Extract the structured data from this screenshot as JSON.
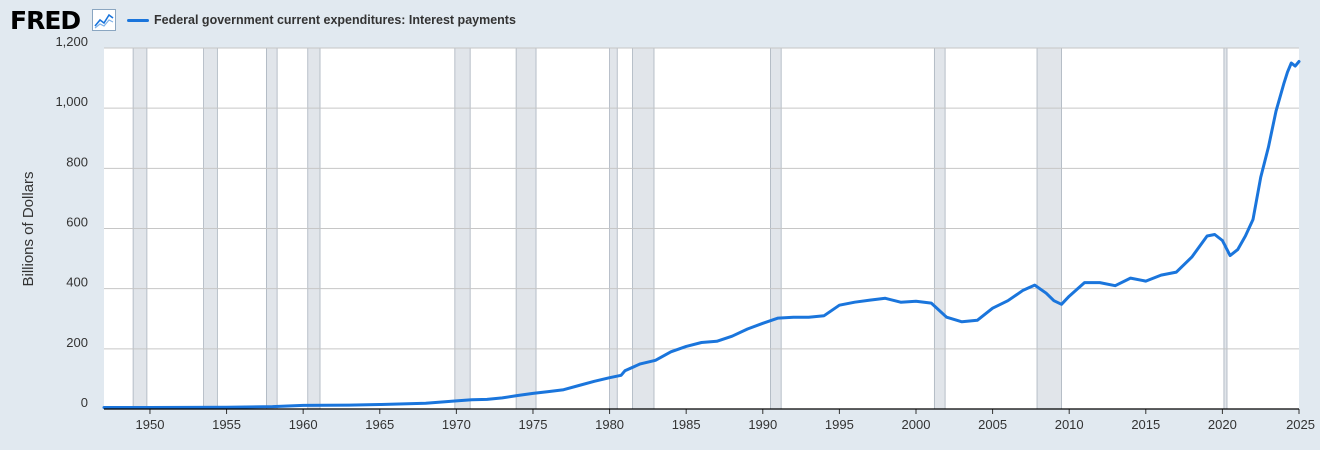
{
  "header": {
    "logo": "FRED",
    "logo_icon": "line-chart-icon"
  },
  "colors": {
    "series": "#1a75dc",
    "recession": "#e1e5ea",
    "background": "#e1e9f0",
    "plot": "#ffffff",
    "grid": "#c6c6c6"
  },
  "chart_data": {
    "type": "line",
    "title": "",
    "xlabel": "",
    "ylabel": "Billions of Dollars",
    "xlim": [
      1947,
      2025
    ],
    "ylim": [
      0,
      1200
    ],
    "x_ticks": [
      1950,
      1955,
      1960,
      1965,
      1970,
      1975,
      1980,
      1985,
      1990,
      1995,
      2000,
      2005,
      2010,
      2015,
      2020,
      2025
    ],
    "y_ticks": [
      0,
      200,
      400,
      600,
      800,
      1000,
      1200
    ],
    "y_tick_labels": [
      "0",
      "200",
      "400",
      "600",
      "800",
      "1,000",
      "1,200"
    ],
    "grid": true,
    "legend": "top-left",
    "recessions": [
      [
        1948.9,
        1949.8
      ],
      [
        1953.5,
        1954.4
      ],
      [
        1957.6,
        1958.3
      ],
      [
        1960.3,
        1961.1
      ],
      [
        1969.9,
        1970.9
      ],
      [
        1973.9,
        1975.2
      ],
      [
        1980.0,
        1980.5
      ],
      [
        1981.5,
        1982.9
      ],
      [
        1990.5,
        1991.2
      ],
      [
        2001.2,
        2001.9
      ],
      [
        2007.9,
        2009.5
      ],
      [
        2020.1,
        2020.3
      ]
    ],
    "series": [
      {
        "name": "Federal government current expenditures: Interest payments",
        "x": [
          1947,
          1950,
          1955,
          1958,
          1960,
          1963,
          1965,
          1968,
          1970,
          1971,
          1972,
          1973,
          1974,
          1975,
          1976,
          1977,
          1978,
          1979,
          1980,
          1980.75,
          1981,
          1982,
          1983,
          1984,
          1985,
          1986,
          1987,
          1988,
          1989,
          1990,
          1991,
          1992,
          1993,
          1994,
          1995,
          1996,
          1997,
          1998,
          1999,
          2000,
          2001,
          2002,
          2003,
          2004,
          2005,
          2006,
          2007,
          2007.75,
          2008.5,
          2009,
          2009.5,
          2010,
          2011,
          2012,
          2013,
          2014,
          2015,
          2016,
          2017,
          2018,
          2019,
          2019.5,
          2020,
          2020.5,
          2021,
          2021.5,
          2022,
          2022.5,
          2023,
          2023.5,
          2024,
          2024.25,
          2024.5,
          2024.75,
          2025
        ],
        "values": [
          5,
          5,
          6,
          8,
          12,
          13,
          15,
          19,
          27,
          31,
          32,
          37,
          45,
          52,
          58,
          64,
          78,
          92,
          104,
          112,
          127,
          150,
          162,
          190,
          208,
          221,
          225,
          242,
          266,
          285,
          302,
          305,
          305,
          310,
          345,
          355,
          362,
          368,
          355,
          358,
          352,
          305,
          290,
          295,
          335,
          360,
          395,
          412,
          385,
          360,
          348,
          375,
          420,
          420,
          410,
          435,
          425,
          445,
          455,
          505,
          575,
          580,
          560,
          510,
          530,
          575,
          630,
          770,
          870,
          990,
          1080,
          1120,
          1150,
          1140,
          1155
        ]
      }
    ]
  }
}
